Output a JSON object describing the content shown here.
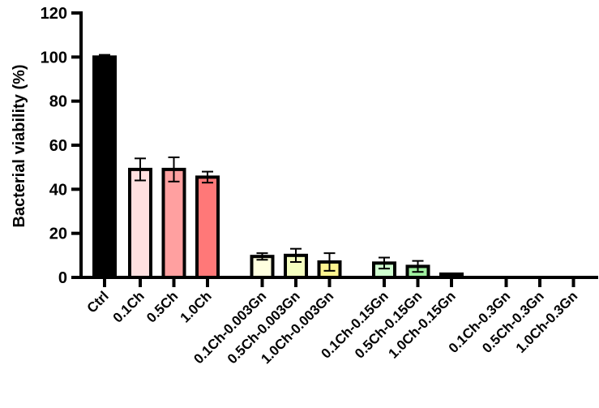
{
  "chart_data": {
    "type": "bar",
    "title": "",
    "xlabel": "",
    "ylabel": "Bacterial viability (%)",
    "ylim": [
      0,
      120
    ],
    "yticks": [
      0,
      20,
      40,
      60,
      80,
      100,
      120
    ],
    "grid": false,
    "categories": [
      "Ctrl",
      "0.1Ch",
      "0.5Ch",
      "1.0Ch",
      "0.1Ch-0.003Gn",
      "0.5Ch-0.003Gn",
      "1.0Ch-0.003Gn",
      "0.1Ch-0.15Gn",
      "0.5Ch-0.15Gn",
      "1.0Ch-0.15Gn",
      "0.1Ch-0.3Gn",
      "0.5Ch-0.3Gn",
      "1.0Ch-0.3Gn"
    ],
    "groups": [
      [
        0
      ],
      [
        1,
        2,
        3
      ],
      [
        4,
        5,
        6
      ],
      [
        7,
        8,
        9
      ],
      [
        10,
        11,
        12
      ]
    ],
    "values": [
      100,
      49,
      49,
      45.5,
      9.5,
      10,
      7,
      6.5,
      5,
      1.5,
      0,
      0,
      0
    ],
    "errors": [
      1,
      5,
      5.5,
      2.5,
      1.5,
      3,
      4,
      2.5,
      2.5,
      0.3,
      0,
      0,
      0
    ],
    "colors": [
      "#000000",
      "#FFE0E0",
      "#FFA0A0",
      "#FF7878",
      "#FFFFE0",
      "#F5FFC0",
      "#FFF590",
      "#D0FFD0",
      "#A0F0A0",
      "#000000",
      "#000000",
      "#000000",
      "#000000"
    ]
  }
}
